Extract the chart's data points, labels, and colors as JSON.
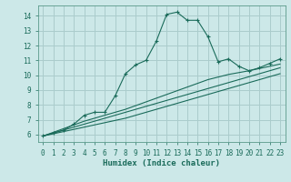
{
  "xlabel": "Humidex (Indice chaleur)",
  "bg_color": "#cce8e8",
  "grid_color": "#aacccc",
  "line_color": "#1a6b5a",
  "xlim": [
    -0.5,
    23.5
  ],
  "ylim": [
    5.5,
    14.7
  ],
  "xticks": [
    0,
    1,
    2,
    3,
    4,
    5,
    6,
    7,
    8,
    9,
    10,
    11,
    12,
    13,
    14,
    15,
    16,
    17,
    18,
    19,
    20,
    21,
    22,
    23
  ],
  "yticks": [
    6,
    7,
    8,
    9,
    10,
    11,
    12,
    13,
    14
  ],
  "curve1_x": [
    0,
    1,
    2,
    3,
    4,
    5,
    6,
    7,
    8,
    9,
    10,
    11,
    12,
    13,
    14,
    15,
    16,
    17,
    18,
    19,
    20,
    21,
    22,
    23
  ],
  "curve1_y": [
    5.9,
    6.1,
    6.3,
    6.7,
    7.3,
    7.5,
    7.5,
    8.6,
    10.1,
    10.7,
    11.0,
    12.3,
    14.1,
    14.25,
    13.7,
    13.7,
    12.6,
    10.9,
    11.1,
    10.6,
    10.3,
    10.5,
    10.8,
    11.1
  ],
  "curve2_x": [
    0,
    2,
    4,
    6,
    8,
    10,
    12,
    14,
    16,
    18,
    20,
    22,
    23
  ],
  "curve2_y": [
    5.9,
    6.3,
    6.7,
    7.1,
    7.5,
    7.9,
    8.3,
    8.7,
    9.1,
    9.5,
    9.9,
    10.3,
    10.5
  ],
  "curve3_x": [
    0,
    2,
    4,
    6,
    8,
    10,
    12,
    14,
    16,
    18,
    20,
    22,
    23
  ],
  "curve3_y": [
    5.9,
    6.4,
    6.9,
    7.3,
    7.7,
    8.2,
    8.7,
    9.2,
    9.7,
    10.05,
    10.3,
    10.6,
    10.75
  ],
  "curve4_x": [
    0,
    2,
    4,
    6,
    8,
    10,
    12,
    14,
    16,
    18,
    20,
    22,
    23
  ],
  "curve4_y": [
    5.9,
    6.2,
    6.5,
    6.8,
    7.1,
    7.5,
    7.9,
    8.3,
    8.7,
    9.1,
    9.5,
    9.9,
    10.1
  ]
}
